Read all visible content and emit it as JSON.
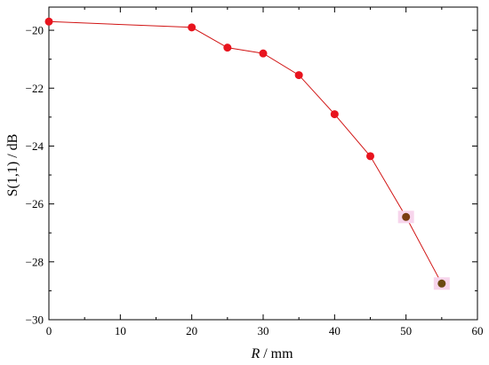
{
  "chart_data": {
    "type": "line",
    "xlabel_var": "R",
    "xlabel_unit": " / mm",
    "ylabel": "S(1,1) / dB",
    "xlim": [
      0,
      60
    ],
    "ylim": [
      -30,
      -19.2
    ],
    "xticks": [
      "0",
      "10",
      "20",
      "30",
      "40",
      "50",
      "60"
    ],
    "yticks": [
      "−20",
      "−22",
      "−24",
      "−26",
      "−28",
      "−30"
    ],
    "grid": false,
    "line_color": "#d11414",
    "series": [
      {
        "x": [
          0,
          20,
          25,
          30,
          35,
          40,
          45,
          50,
          55
        ],
        "y": [
          -19.7,
          -19.9,
          -20.6,
          -20.8,
          -21.55,
          -22.9,
          -24.35,
          -26.45,
          -28.75
        ],
        "marker_colors": [
          "#e8141e",
          "#e8141e",
          "#e8141e",
          "#e8141e",
          "#e8141e",
          "#e8141e",
          "#e8141e",
          "#7a3d12",
          "#6b4a12"
        ],
        "marker_halo": [
          false,
          false,
          false,
          false,
          false,
          false,
          false,
          true,
          true
        ],
        "halo_color": "#f7d5ec"
      }
    ]
  }
}
